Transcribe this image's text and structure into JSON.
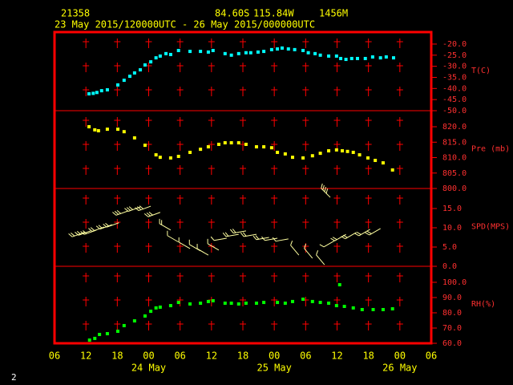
{
  "header": {
    "station": "21358",
    "latitude": "84.60S",
    "longitude": "115.84W",
    "elevation": "1456M",
    "period": "23 May 2015/120000UTC - 26 May 2015/000000UTC",
    "page": "2"
  },
  "xaxis": {
    "xlim": [
      0,
      72
    ],
    "xticks": [
      {
        "value": 0,
        "label": "06"
      },
      {
        "value": 6,
        "label": "12"
      },
      {
        "value": 12,
        "label": "18"
      },
      {
        "value": 18,
        "label": "00"
      },
      {
        "value": 24,
        "label": "06"
      },
      {
        "value": 30,
        "label": "12"
      },
      {
        "value": 36,
        "label": "18"
      },
      {
        "value": 42,
        "label": "00"
      },
      {
        "value": 48,
        "label": "06"
      },
      {
        "value": 54,
        "label": "12"
      },
      {
        "value": 60,
        "label": "18"
      },
      {
        "value": 66,
        "label": "00"
      },
      {
        "value": 72,
        "label": "06"
      }
    ],
    "date_labels": [
      {
        "value": 18,
        "label": "24 May"
      },
      {
        "value": 42,
        "label": "25 May"
      },
      {
        "value": 66,
        "label": "26 May"
      }
    ]
  },
  "chart_data": [
    {
      "type": "scatter",
      "ylabel": "T(C)",
      "color": "#00ffff",
      "x": [
        6.6,
        7.4,
        8.1,
        9.0,
        10.1,
        12.1,
        13.3,
        14.4,
        15.3,
        16.4,
        17.3,
        18.4,
        19.4,
        20.2,
        21.3,
        22.2,
        23.7,
        25.9,
        27.9,
        29.4,
        30.3,
        32.6,
        33.8,
        35.2,
        36.6,
        37.5,
        38.9,
        40.0,
        41.5,
        42.6,
        43.5,
        44.7,
        45.9,
        47.5,
        48.5,
        49.8,
        50.8,
        52.4,
        53.9,
        54.7,
        55.7,
        56.8,
        57.9,
        59.4,
        60.8,
        62.3,
        63.4,
        64.8
      ],
      "values": [
        -42.4,
        -42.2,
        -41.8,
        -41.0,
        -40.6,
        -38.4,
        -36.3,
        -34.5,
        -33.0,
        -31.6,
        -29.4,
        -28.0,
        -26.2,
        -25.4,
        -24.3,
        -24.7,
        -22.9,
        -23.3,
        -23.3,
        -23.6,
        -22.9,
        -24.3,
        -25.0,
        -24.3,
        -23.9,
        -23.9,
        -23.6,
        -23.3,
        -22.5,
        -22.2,
        -21.8,
        -22.2,
        -22.5,
        -22.9,
        -23.9,
        -24.3,
        -25.0,
        -25.4,
        -25.4,
        -26.5,
        -26.9,
        -26.5,
        -26.5,
        -26.5,
        -25.8,
        -26.2,
        -25.8,
        -26.2
      ],
      "ylim": [
        -50,
        -14.6
      ],
      "yticks": [
        {
          "value": -20,
          "label": "-20.0"
        },
        {
          "value": -25,
          "label": "-25.0"
        },
        {
          "value": -30,
          "label": "-30.0"
        },
        {
          "value": -35,
          "label": "-35.0"
        },
        {
          "value": -40,
          "label": "-40.0"
        },
        {
          "value": -45,
          "label": "-45.0"
        },
        {
          "value": -50,
          "label": "-50.0"
        }
      ]
    },
    {
      "type": "scatter",
      "ylabel": "Pre (mb)",
      "color": "#ffff00",
      "x": [
        6.6,
        7.7,
        8.4,
        10.1,
        12.1,
        13.3,
        15.3,
        17.3,
        19.4,
        20.2,
        22.2,
        23.7,
        25.9,
        27.9,
        29.4,
        31.4,
        32.6,
        33.8,
        35.2,
        36.6,
        38.6,
        40.0,
        41.5,
        42.6,
        44.1,
        45.5,
        47.5,
        49.3,
        50.8,
        52.4,
        53.9,
        55.0,
        56.0,
        57.1,
        58.3,
        59.9,
        61.3,
        62.8,
        64.6
      ],
      "values": [
        820.0,
        819.0,
        818.7,
        819.2,
        819.2,
        818.4,
        816.4,
        814.0,
        810.9,
        810.1,
        809.9,
        810.4,
        811.7,
        812.7,
        813.5,
        814.3,
        814.8,
        814.8,
        814.8,
        814.3,
        813.5,
        813.5,
        813.2,
        811.7,
        811.2,
        810.1,
        809.9,
        810.6,
        811.4,
        812.2,
        812.5,
        812.2,
        812.0,
        811.7,
        810.9,
        809.9,
        809.1,
        808.3,
        806.0
      ],
      "ylim": [
        800,
        825.2
      ],
      "yticks": [
        {
          "value": 820,
          "label": "820.0"
        },
        {
          "value": 815,
          "label": "815.0"
        },
        {
          "value": 810,
          "label": "810.0"
        },
        {
          "value": 805,
          "label": "805.0"
        },
        {
          "value": 800,
          "label": "800.0"
        }
      ]
    },
    {
      "type": "barbs",
      "ylabel": "SPD(MPS)",
      "color": "#ffffa0",
      "x": [
        5.7,
        6.9,
        8.0,
        9.5,
        11.0,
        12.3,
        14.1,
        16.4,
        18.4,
        20.2,
        22.2,
        23.7,
        25.9,
        27.9,
        29.4,
        31.4,
        32.9,
        35.2,
        36.6,
        38.6,
        41.0,
        42.6,
        44.7,
        46.7,
        49.3,
        51.6,
        52.7,
        53.6,
        55.7,
        57.7,
        60.3,
        62.3
      ],
      "values": [
        8.8,
        9.2,
        9.4,
        10.2,
        10.8,
        11.3,
        14.4,
        15.4,
        15.6,
        14.0,
        9.4,
        6.3,
        4.6,
        4.0,
        2.9,
        4.2,
        7.3,
        8.3,
        9.2,
        8.3,
        7.5,
        7.3,
        7.1,
        2.9,
        2.1,
        0.4,
        17.9,
        6.7,
        8.3,
        8.8,
        9.6,
        9.8
      ],
      "directions": [
        250,
        250,
        250,
        250,
        250,
        250,
        250,
        250,
        250,
        250,
        300,
        300,
        300,
        300,
        300,
        300,
        260,
        260,
        260,
        260,
        260,
        260,
        260,
        320,
        320,
        320,
        315,
        240,
        240,
        240,
        240,
        240
      ],
      "ylim": [
        0,
        20.2
      ],
      "yticks": [
        {
          "value": 15,
          "label": "15.0"
        },
        {
          "value": 10,
          "label": "10.0"
        },
        {
          "value": 5,
          "label": "5.0"
        },
        {
          "value": 0,
          "label": "0.0"
        }
      ]
    },
    {
      "type": "scatter",
      "ylabel": "RH(%)",
      "color": "#00ff00",
      "x": [
        6.7,
        7.7,
        8.6,
        10.1,
        12.1,
        13.3,
        15.3,
        17.3,
        18.4,
        19.4,
        20.2,
        22.2,
        23.7,
        25.9,
        27.9,
        29.4,
        30.3,
        32.6,
        33.8,
        35.2,
        36.6,
        38.6,
        40.0,
        42.6,
        44.1,
        45.5,
        47.5,
        49.3,
        50.8,
        52.4,
        53.9,
        54.5,
        55.4,
        57.1,
        58.8,
        60.9,
        62.8,
        64.6
      ],
      "values": [
        62.1,
        63.2,
        65.8,
        66.3,
        67.9,
        71.6,
        74.7,
        77.9,
        81.0,
        83.2,
        83.7,
        84.7,
        86.8,
        85.8,
        86.3,
        87.4,
        87.9,
        86.3,
        86.3,
        85.8,
        86.3,
        86.3,
        86.8,
        86.8,
        86.3,
        87.4,
        88.9,
        87.4,
        86.8,
        86.3,
        84.7,
        98.4,
        84.2,
        83.2,
        82.1,
        82.1,
        82.1,
        82.6
      ],
      "ylim": [
        60,
        110.5
      ],
      "yticks": [
        {
          "value": 100,
          "label": "100.0"
        },
        {
          "value": 90,
          "label": "90.0"
        },
        {
          "value": 80,
          "label": "80.0"
        },
        {
          "value": 70,
          "label": "70.0"
        },
        {
          "value": 60,
          "label": "60.0"
        }
      ]
    }
  ]
}
